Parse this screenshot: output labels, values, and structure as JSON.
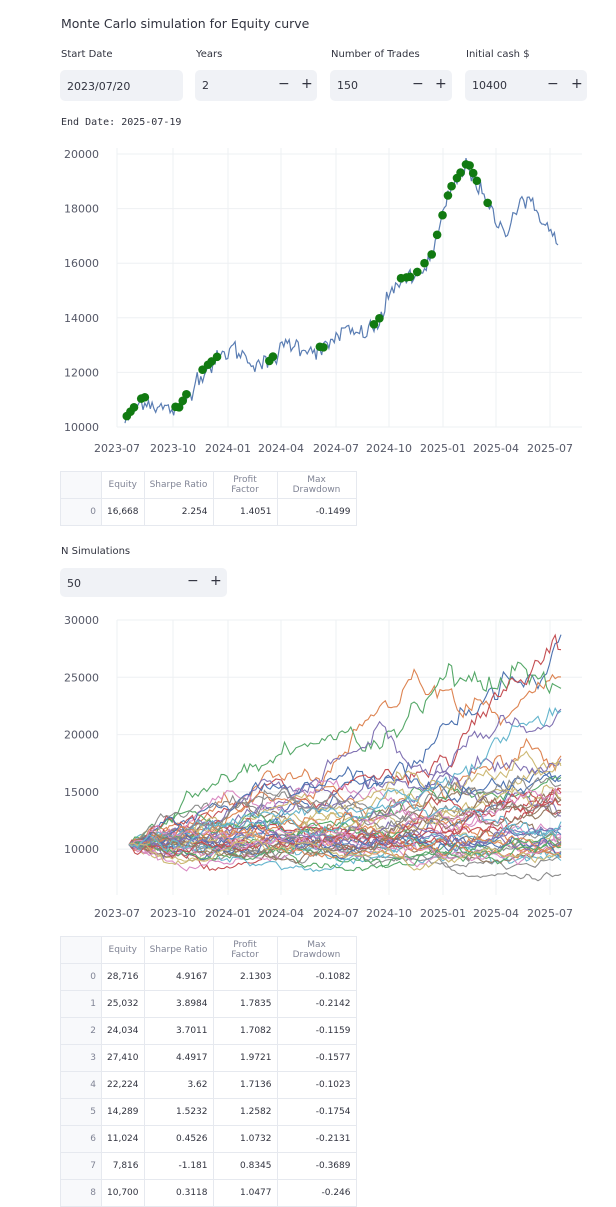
{
  "title": "Monte Carlo simulation for Equity curve",
  "inputs": {
    "start_date": {
      "label": "Start Date",
      "value": "2023/07/20"
    },
    "years": {
      "label": "Years",
      "value": "2"
    },
    "num_trades": {
      "label": "Number of Trades",
      "value": "150"
    },
    "initial_cash": {
      "label": "Initial cash $",
      "value": "10400"
    },
    "minus_symbol": "−",
    "plus_symbol": "+"
  },
  "end_date_text": "End Date: 2025-07-19",
  "chart1": {
    "type": "line",
    "x_ticks": [
      "2023-07",
      "2023-10",
      "2024-01",
      "2024-04",
      "2024-07",
      "2024-10",
      "2025-01",
      "2025-04",
      "2025-07"
    ],
    "y_ticks": [
      "10000",
      "12000",
      "14000",
      "16000",
      "18000",
      "20000"
    ],
    "ylim": [
      10000,
      20000
    ],
    "line_color": "#5a7db3",
    "marker_color": "#117a11"
  },
  "summary_table": {
    "headers": [
      "",
      "Equity",
      "Sharpe Ratio",
      "Profit Factor",
      "Max Drawdown"
    ],
    "rows": [
      [
        "0",
        "16,668",
        "2.254",
        "1.4051",
        "-0.1499"
      ]
    ]
  },
  "n_sims": {
    "label": "N Simulations",
    "value": "50"
  },
  "chart2": {
    "type": "line",
    "x_ticks": [
      "2023-07",
      "2023-10",
      "2024-01",
      "2024-04",
      "2024-07",
      "2024-10",
      "2025-01",
      "2025-04",
      "2025-07"
    ],
    "y_ticks": [
      "10000",
      "15000",
      "20000",
      "25000",
      "30000"
    ],
    "ylim": [
      6000,
      30000
    ],
    "n_series": 50
  },
  "sim_table": {
    "headers": [
      "",
      "Equity",
      "Sharpe Ratio",
      "Profit Factor",
      "Max Drawdown"
    ],
    "rows": [
      [
        "0",
        "28,716",
        "4.9167",
        "2.1303",
        "-0.1082"
      ],
      [
        "1",
        "25,032",
        "3.8984",
        "1.7835",
        "-0.2142"
      ],
      [
        "2",
        "24,034",
        "3.7011",
        "1.7082",
        "-0.1159"
      ],
      [
        "3",
        "27,410",
        "4.4917",
        "1.9721",
        "-0.1577"
      ],
      [
        "4",
        "22,224",
        "3.62",
        "1.7136",
        "-0.1023"
      ],
      [
        "5",
        "14,289",
        "1.5232",
        "1.2582",
        "-0.1754"
      ],
      [
        "6",
        "11,024",
        "0.4526",
        "1.0732",
        "-0.2131"
      ],
      [
        "7",
        "7,816",
        "-1.181",
        "0.8345",
        "-0.3689"
      ],
      [
        "8",
        "10,700",
        "0.3118",
        "1.0477",
        "-0.246"
      ]
    ]
  },
  "chart_data": [
    {
      "type": "line",
      "title": "",
      "x_ticks": [
        "2023-07",
        "2023-10",
        "2024-01",
        "2024-04",
        "2024-07",
        "2024-10",
        "2025-01",
        "2025-04",
        "2025-07"
      ],
      "ylim": [
        10000,
        20000
      ],
      "series": [
        {
          "x": [
            "2023-07",
            "2023-08",
            "2023-09",
            "2023-10",
            "2023-11",
            "2023-12",
            "2024-01",
            "2024-02",
            "2024-03",
            "2024-04",
            "2024-05",
            "2024-06",
            "2024-07",
            "2024-08",
            "2024-09",
            "2024-10",
            "2024-11",
            "2024-12",
            "2025-01",
            "2025-02",
            "2025-03",
            "2025-04",
            "2025-05",
            "2025-06",
            "2025-07"
          ],
          "values": [
            10200,
            11000,
            10700,
            10600,
            11800,
            12400,
            12900,
            12400,
            12300,
            13100,
            12900,
            12800,
            13500,
            13400,
            13700,
            15300,
            15400,
            16200,
            18600,
            19600,
            18200,
            17100,
            18400,
            17800,
            16668
          ]
        }
      ],
      "markers": {
        "count": 36,
        "color": "#117a11"
      }
    },
    {
      "type": "line",
      "title": "",
      "x_ticks": [
        "2023-07",
        "2023-10",
        "2024-01",
        "2024-04",
        "2024-07",
        "2024-10",
        "2025-01",
        "2025-04",
        "2025-07"
      ],
      "ylim": [
        6000,
        30000
      ],
      "series_count": 50,
      "start_value": 10400,
      "final_values": [
        28716,
        25032,
        24034,
        27410,
        22224,
        14289,
        11024,
        7816,
        10700
      ]
    }
  ],
  "colors": {
    "sim_palette": [
      "#4c72b0",
      "#dd8452",
      "#55a868",
      "#c44e52",
      "#8172b3",
      "#937860",
      "#da8bc3",
      "#8c8c8c",
      "#ccb974",
      "#64b5cd"
    ]
  }
}
